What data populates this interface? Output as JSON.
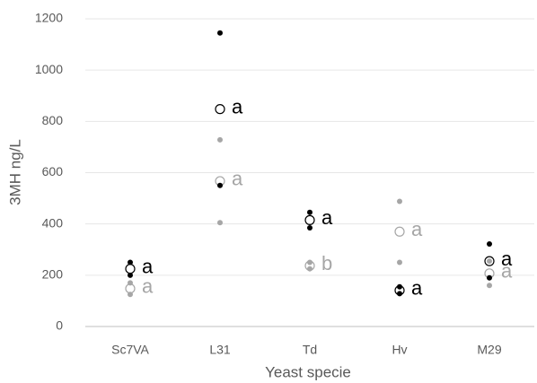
{
  "chart_data": {
    "type": "dot",
    "y_label": "3MH ng/L",
    "x_label": "Yeast specie",
    "categories": [
      "Sc7VA",
      "L31",
      "Td",
      "Hv",
      "M29"
    ],
    "ylim": [
      0,
      1200
    ],
    "yticks": [
      0,
      200,
      400,
      600,
      800,
      1000,
      1200
    ],
    "grid": true,
    "series": [
      {
        "color": "#a6a6a6",
        "values": [
          148,
          567,
          237,
          370,
          207
        ],
        "points": [
          [
            170,
            125
          ],
          [
            728,
            405
          ],
          [
            250,
            225
          ],
          [
            488,
            250
          ],
          [
            255,
            160
          ]
        ],
        "letters": [
          "a",
          "a",
          "b",
          "a",
          "a"
        ]
      },
      {
        "color": "#000000",
        "values": [
          225,
          848,
          415,
          141,
          255
        ],
        "points": [
          [
            250,
            200
          ],
          [
            1145,
            550
          ],
          [
            445,
            385
          ],
          [
            155,
            128
          ],
          [
            322,
            190
          ]
        ],
        "letters": [
          "a",
          "a",
          "a",
          "a",
          "a"
        ]
      }
    ]
  }
}
